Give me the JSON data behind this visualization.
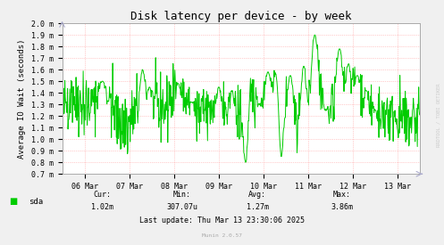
{
  "title": "Disk latency per device - by week",
  "ylabel": "Average IO Wait (seconds)",
  "y_ticks": [
    0.0007,
    0.0008,
    0.0009,
    0.001,
    0.0011,
    0.0012,
    0.0013,
    0.0014,
    0.0015,
    0.0016,
    0.0017,
    0.0018,
    0.0019,
    0.002
  ],
  "y_tick_labels": [
    "0.7 m",
    "0.8 m",
    "0.9 m",
    "1.0 m",
    "1.1 m",
    "1.2 m",
    "1.3 m",
    "1.4 m",
    "1.5 m",
    "1.6 m",
    "1.7 m",
    "1.8 m",
    "1.9 m",
    "2.0 m"
  ],
  "ylim": [
    0.0007,
    0.002
  ],
  "line_color": "#00cc00",
  "background_color": "#f0f0f0",
  "plot_bg_color": "#ffffff",
  "grid_color": "#ff8888",
  "legend_label": "sda",
  "legend_color": "#00cc00",
  "cur": "1.02m",
  "min": "307.07u",
  "avg": "1.27m",
  "max": "3.86m",
  "last_update": "Last update: Thu Mar 13 23:30:06 2025",
  "munin_version": "Munin 2.0.57",
  "rrdtool_label": "RRDTOOL / TOBI OETIKER",
  "x_tick_labels": [
    "06 Mar",
    "07 Mar",
    "08 Mar",
    "09 Mar",
    "10 Mar",
    "11 Mar",
    "12 Mar",
    "13 Mar"
  ],
  "title_fontsize": 9,
  "axis_fontsize": 6.5,
  "tick_fontsize": 6,
  "legend_fontsize": 6.5,
  "stats_fontsize": 6,
  "font_family": "DejaVu Sans Mono"
}
